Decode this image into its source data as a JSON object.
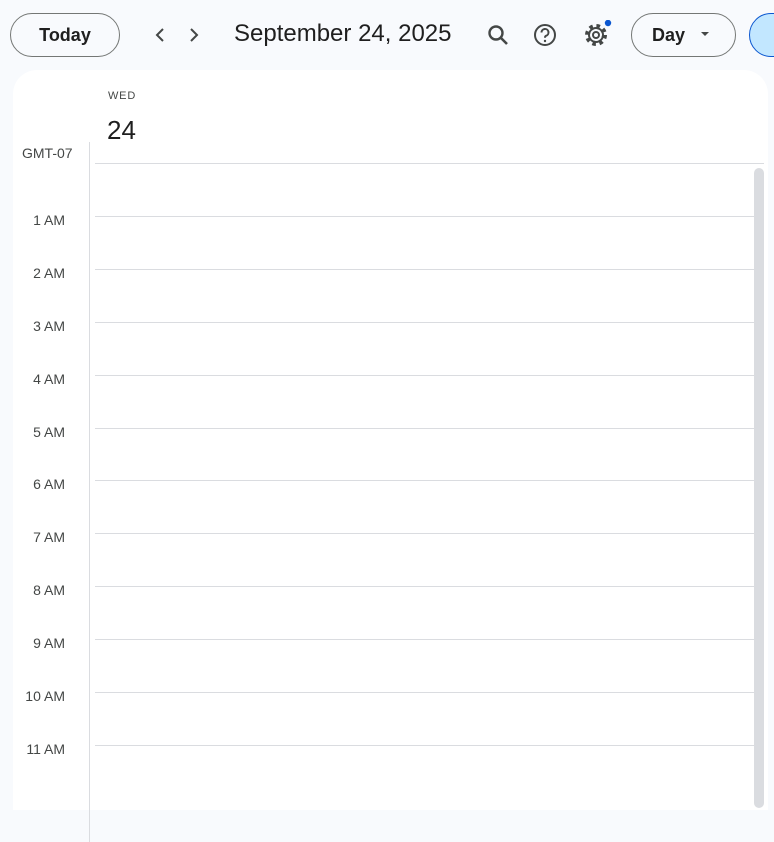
{
  "toolbar": {
    "today": "Today",
    "date": "September 24, 2025",
    "view": "Day"
  },
  "day": {
    "weekday": "WED",
    "number": "24"
  },
  "timezone": "GMT-07",
  "hours": [
    "1 AM",
    "2 AM",
    "3 AM",
    "4 AM",
    "5 AM",
    "6 AM",
    "7 AM",
    "8 AM",
    "9 AM",
    "10 AM",
    "11 AM"
  ]
}
